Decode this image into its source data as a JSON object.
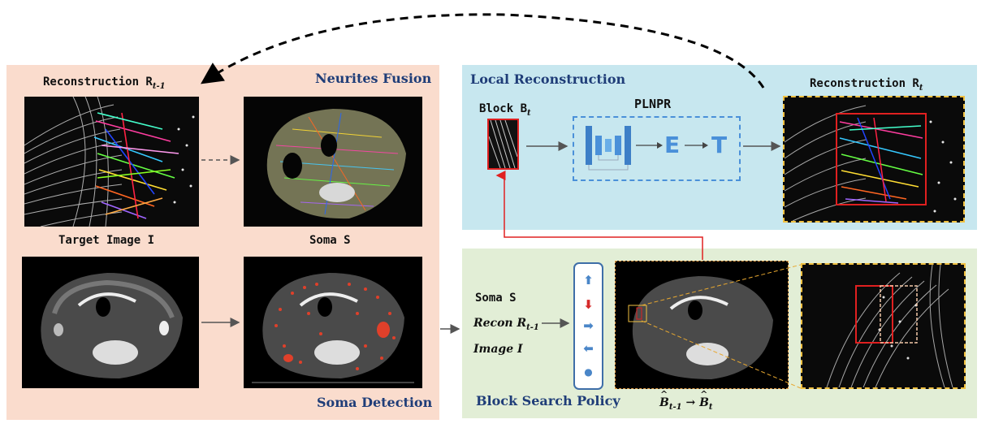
{
  "sections": {
    "neurites_fusion": "Neurites Fusion",
    "local_reconstruction": "Local Reconstruction",
    "block_search_policy": "Block Search Policy",
    "soma_detection": "Soma Detection"
  },
  "labels": {
    "reconstruction_prev": "Reconstruction R",
    "reconstruction_prev_sub": "t-1",
    "target_image": "Target Image I",
    "soma": "Soma S",
    "block": "Block B",
    "block_sub": "t",
    "plnpr": "PLNPR",
    "reconstruction_cur": "Reconstruction R",
    "reconstruction_cur_sub": "t",
    "module_e": "E",
    "module_t": "T"
  },
  "inputs": {
    "soma": "Soma S",
    "recon": "Recon R",
    "recon_sub": "t-1",
    "image": "Image I"
  },
  "policy_formula": {
    "from": "B",
    "from_sub": "t-1",
    "arrow": "→",
    "to": "B",
    "to_sub": "t"
  },
  "actions": [
    {
      "glyph": "⬆",
      "color": "#4a86c8"
    },
    {
      "glyph": "⬇",
      "color": "#d62a2a"
    },
    {
      "glyph": "➡",
      "color": "#4a86c8"
    },
    {
      "glyph": "⬅",
      "color": "#4a86c8"
    },
    {
      "glyph": "●",
      "color": "#4a86c8"
    }
  ],
  "colors": {
    "panel_left": "#fadccd",
    "panel_local": "#c7e7ef",
    "panel_search": "#e2eed6",
    "title_blue": "#1f3d78",
    "red_box": "#e02020",
    "yellow_box": "#f0c040",
    "plnpr_blue": "#4a90d9"
  }
}
